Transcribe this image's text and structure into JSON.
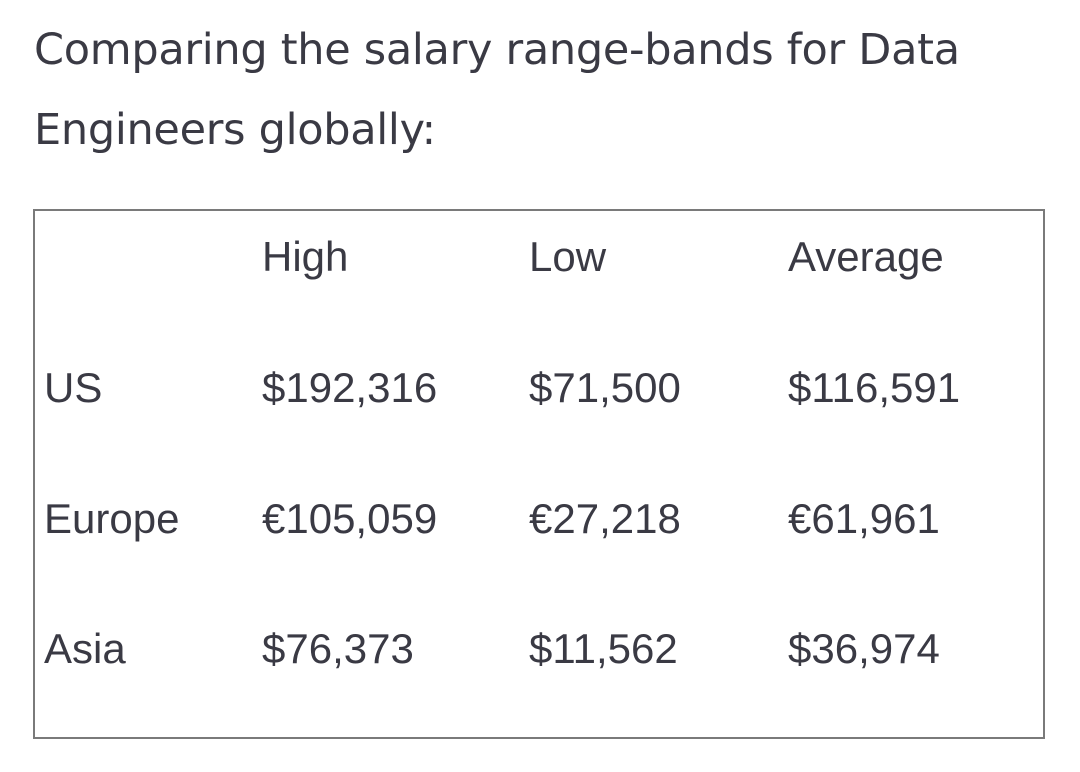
{
  "heading": "Comparing the salary range-bands for Data Engineers globally:",
  "table": {
    "columns": [
      "",
      "High",
      "Low",
      "Average"
    ],
    "rows": [
      {
        "region": "US",
        "high": "$192,316",
        "low": "$71,500",
        "average": "$116,591"
      },
      {
        "region": "Europe",
        "high": "€105,059",
        "low": "€27,218",
        "average": "€61,961"
      },
      {
        "region": "Asia",
        "high": "$76,373",
        "low": "$11,562",
        "average": "$36,974"
      }
    ]
  }
}
